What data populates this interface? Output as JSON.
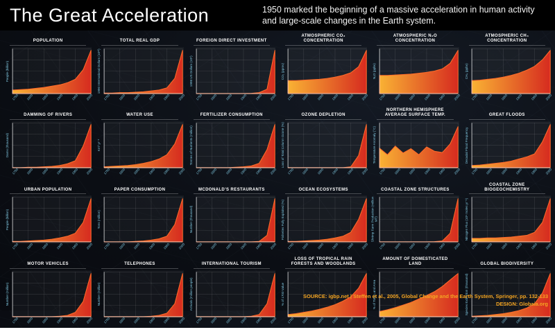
{
  "header": {
    "title": "The Great Acceleration",
    "subtitle": "1950 marked the beginning of a massive acceleration in human activity and large-scale changes in the Earth system."
  },
  "footer": {
    "source": "SOURCE: igbp.net | Steffen et al., 2005, Global Change and the Earth System, Springer, pp. 132-133",
    "design": "DESIGN: Globaia.org"
  },
  "colors": {
    "background": "#0b0e14",
    "header_bg": "#000000",
    "title_text": "#ffffff",
    "axis_text": "#7fc6de",
    "footer_text": "#f5a623",
    "area_start": "#f9b234",
    "area_end": "#d62b1f",
    "area_stroke": "#ff6a2a",
    "grid_line": "rgba(255,255,255,0.14)",
    "axis_line": "rgba(255,255,255,0.55)"
  },
  "chart_data": [
    {
      "type": "area",
      "title": "Population",
      "ylabel": "People (billion)",
      "x_ticks": [
        "1750",
        "1800",
        "1850",
        "1900",
        "1950",
        "2000"
      ],
      "x_range": [
        1750,
        2000
      ],
      "values": [
        0.08,
        0.09,
        0.1,
        0.12,
        0.14,
        0.17,
        0.2,
        0.25,
        0.33,
        0.55,
        1.0
      ]
    },
    {
      "type": "area",
      "title": "Total Real GDP",
      "ylabel": "1990 International Dollars (10¹²)",
      "x_ticks": [
        "1750",
        "1800",
        "1850",
        "1900",
        "1950",
        "2000"
      ],
      "x_range": [
        1750,
        2000
      ],
      "values": [
        0.01,
        0.01,
        0.02,
        0.02,
        0.03,
        0.04,
        0.06,
        0.08,
        0.13,
        0.35,
        1.0
      ]
    },
    {
      "type": "area",
      "title": "Foreign Direct Investment",
      "ylabel": "1998 US Dollars (10⁹)",
      "x_ticks": [
        "1750",
        "1800",
        "1850",
        "1900",
        "1950",
        "2000"
      ],
      "x_range": [
        1750,
        2000
      ],
      "values": [
        0,
        0,
        0,
        0,
        0,
        0,
        0,
        0.005,
        0.02,
        0.1,
        1.0
      ]
    },
    {
      "type": "area",
      "title": "Atmospheric CO₂ Concentration",
      "ylabel": "CO₂ (ppmv)",
      "x_ticks": [
        "1750",
        "1800",
        "1850",
        "1900",
        "1950",
        "2000"
      ],
      "x_range": [
        1750,
        2000
      ],
      "values": [
        0.3,
        0.3,
        0.31,
        0.32,
        0.33,
        0.35,
        0.38,
        0.42,
        0.48,
        0.62,
        1.0
      ]
    },
    {
      "type": "area",
      "title": "Atmospheric N₂O Concentration",
      "ylabel": "N₂O (ppbv)",
      "x_ticks": [
        "1750",
        "1800",
        "1850",
        "1900",
        "1950",
        "2000"
      ],
      "x_range": [
        1750,
        2000
      ],
      "values": [
        0.42,
        0.42,
        0.43,
        0.44,
        0.45,
        0.47,
        0.49,
        0.52,
        0.57,
        0.7,
        1.0
      ]
    },
    {
      "type": "area",
      "title": "Atmospheric CH₄ Concentration",
      "ylabel": "CH₄ (ppbv)",
      "x_ticks": [
        "1750",
        "1800",
        "1850",
        "1900",
        "1950",
        "2000"
      ],
      "x_range": [
        1750,
        2000
      ],
      "values": [
        0.3,
        0.31,
        0.33,
        0.35,
        0.38,
        0.42,
        0.47,
        0.54,
        0.63,
        0.78,
        1.0
      ]
    },
    {
      "type": "area",
      "title": "Damming of Rivers",
      "ylabel": "Dams (thousand)",
      "x_ticks": [
        "1750",
        "1800",
        "1850",
        "1900",
        "1950",
        "2000"
      ],
      "x_range": [
        1750,
        2000
      ],
      "values": [
        0,
        0,
        0.01,
        0.01,
        0.02,
        0.03,
        0.05,
        0.09,
        0.16,
        0.5,
        1.0
      ]
    },
    {
      "type": "area",
      "title": "Water Use",
      "ylabel": "Km³ yr⁻¹",
      "x_ticks": [
        "1750",
        "1800",
        "1850",
        "1900",
        "1950",
        "2000"
      ],
      "x_range": [
        1750,
        2000
      ],
      "values": [
        0.02,
        0.03,
        0.04,
        0.05,
        0.07,
        0.1,
        0.14,
        0.2,
        0.3,
        0.55,
        1.0
      ]
    },
    {
      "type": "area",
      "title": "Fertilizer Consumption",
      "ylabel": "Tonnes of Nutrients (million)",
      "x_ticks": [
        "1750",
        "1800",
        "1850",
        "1900",
        "1950",
        "2000"
      ],
      "x_range": [
        1750,
        2000
      ],
      "values": [
        0,
        0,
        0,
        0,
        0,
        0.01,
        0.02,
        0.04,
        0.1,
        0.42,
        1.0
      ]
    },
    {
      "type": "area",
      "title": "Ozone Depletion",
      "ylabel": "Loss of Total Column Ozone (%)",
      "x_ticks": [
        "1750",
        "1800",
        "1850",
        "1900",
        "1950",
        "2000"
      ],
      "x_range": [
        1750,
        2000
      ],
      "values": [
        0,
        0,
        0,
        0,
        0,
        0,
        0,
        0,
        0.02,
        0.28,
        1.0
      ]
    },
    {
      "type": "area",
      "title": "Northern Hemisphere Average Surface Temp.",
      "ylabel": "Temperature Anomaly (°C)",
      "x_ticks": [
        "1750",
        "1800",
        "1850",
        "1900",
        "1950",
        "2000"
      ],
      "x_range": [
        1750,
        2000
      ],
      "values": [
        0.45,
        0.3,
        0.5,
        0.34,
        0.44,
        0.3,
        0.48,
        0.38,
        0.35,
        0.55,
        0.95
      ]
    },
    {
      "type": "area",
      "title": "Great Floods",
      "ylabel": "Decadal Flood Frequency",
      "x_ticks": [
        "1750",
        "1800",
        "1850",
        "1900",
        "1950",
        "2000"
      ],
      "x_range": [
        1750,
        2000
      ],
      "values": [
        0.05,
        0.06,
        0.08,
        0.1,
        0.12,
        0.15,
        0.2,
        0.25,
        0.32,
        0.6,
        1.0
      ]
    },
    {
      "type": "area",
      "title": "Urban Population",
      "ylabel": "People (billion)",
      "x_ticks": [
        "1750",
        "1800",
        "1850",
        "1900",
        "1950",
        "2000"
      ],
      "x_range": [
        1750,
        2000
      ],
      "values": [
        0.01,
        0.01,
        0.02,
        0.03,
        0.04,
        0.06,
        0.09,
        0.13,
        0.2,
        0.45,
        1.0
      ]
    },
    {
      "type": "area",
      "title": "Paper Consumption",
      "ylabel": "Tons (million)",
      "x_ticks": [
        "1750",
        "1800",
        "1850",
        "1900",
        "1950",
        "2000"
      ],
      "x_range": [
        1750,
        2000
      ],
      "values": [
        0,
        0,
        0,
        0,
        0.01,
        0.02,
        0.04,
        0.07,
        0.13,
        0.4,
        1.0
      ]
    },
    {
      "type": "area",
      "title": "McDonald's Restaurants",
      "ylabel": "Number (thousand)",
      "x_ticks": [
        "1750",
        "1800",
        "1850",
        "1900",
        "1950",
        "2000"
      ],
      "x_range": [
        1750,
        2000
      ],
      "values": [
        0,
        0,
        0,
        0,
        0,
        0,
        0,
        0,
        0.01,
        0.15,
        1.0
      ]
    },
    {
      "type": "area",
      "title": "Ocean Ecosystems",
      "ylabel": "Fisheries Fully Exploited (%)",
      "x_ticks": [
        "1750",
        "1800",
        "1850",
        "1900",
        "1950",
        "2000"
      ],
      "x_range": [
        1750,
        2000
      ],
      "values": [
        0.01,
        0.01,
        0.02,
        0.03,
        0.04,
        0.06,
        0.09,
        0.13,
        0.22,
        0.52,
        1.0
      ]
    },
    {
      "type": "area",
      "title": "Coastal Zone Structures",
      "ylabel": "Shrimp Farm Production (million MT)",
      "x_ticks": [
        "1750",
        "1800",
        "1850",
        "1900",
        "1950",
        "2000"
      ],
      "x_range": [
        1750,
        2000
      ],
      "values": [
        0,
        0,
        0,
        0,
        0,
        0,
        0,
        0.005,
        0.02,
        0.2,
        1.0
      ]
    },
    {
      "type": "area",
      "title": "Coastal Zone Biogeochemistry",
      "ylabel": "Nitrogen Flux (10⁹ moles yr⁻¹)",
      "x_ticks": [
        "1750",
        "1800",
        "1850",
        "1900",
        "1950",
        "2000"
      ],
      "x_range": [
        1750,
        2000
      ],
      "values": [
        0.08,
        0.08,
        0.09,
        0.09,
        0.1,
        0.11,
        0.13,
        0.15,
        0.22,
        0.45,
        1.0
      ]
    },
    {
      "type": "area",
      "title": "Motor Vehicles",
      "ylabel": "Number (million)",
      "x_ticks": [
        "1750",
        "1800",
        "1850",
        "1900",
        "1950",
        "2000"
      ],
      "x_range": [
        1750,
        2000
      ],
      "values": [
        0,
        0,
        0,
        0,
        0,
        0,
        0.01,
        0.03,
        0.1,
        0.35,
        1.0
      ]
    },
    {
      "type": "area",
      "title": "Telephones",
      "ylabel": "Number (million)",
      "x_ticks": [
        "1750",
        "1800",
        "1850",
        "1900",
        "1950",
        "2000"
      ],
      "x_range": [
        1750,
        2000
      ],
      "values": [
        0,
        0,
        0,
        0,
        0,
        0,
        0.01,
        0.03,
        0.08,
        0.3,
        1.0
      ]
    },
    {
      "type": "area",
      "title": "International Tourism",
      "ylabel": "Arrivals (million people)",
      "x_ticks": [
        "1750",
        "1800",
        "1850",
        "1900",
        "1950",
        "2000"
      ],
      "x_range": [
        1750,
        2000
      ],
      "values": [
        0,
        0,
        0,
        0,
        0,
        0,
        0,
        0.01,
        0.05,
        0.3,
        1.0
      ]
    },
    {
      "type": "area",
      "title": "Loss of Tropical Rain Forests and Woodlands",
      "ylabel": "% of 1700 Value",
      "x_ticks": [
        "1750",
        "1800",
        "1850",
        "1900",
        "1950",
        "2000"
      ],
      "x_range": [
        1750,
        2000
      ],
      "values": [
        0.05,
        0.07,
        0.1,
        0.13,
        0.17,
        0.22,
        0.28,
        0.36,
        0.46,
        0.66,
        1.0
      ]
    },
    {
      "type": "area",
      "title": "Amount of Domesticated Land",
      "ylabel": "% of Total Land Area",
      "x_ticks": [
        "1750",
        "1800",
        "1850",
        "1900",
        "1950",
        "2000"
      ],
      "x_range": [
        1750,
        2000
      ],
      "values": [
        0.12,
        0.16,
        0.21,
        0.27,
        0.33,
        0.41,
        0.49,
        0.58,
        0.7,
        0.85,
        1.0
      ]
    },
    {
      "type": "area",
      "title": "Global Biodiversity",
      "ylabel": "Species Extinction (thousand)",
      "x_ticks": [
        "1750",
        "1800",
        "1850",
        "1900",
        "1950",
        "2000"
      ],
      "x_range": [
        1750,
        2000
      ],
      "values": [
        0.01,
        0.02,
        0.03,
        0.05,
        0.07,
        0.1,
        0.14,
        0.2,
        0.3,
        0.55,
        1.0
      ]
    }
  ]
}
